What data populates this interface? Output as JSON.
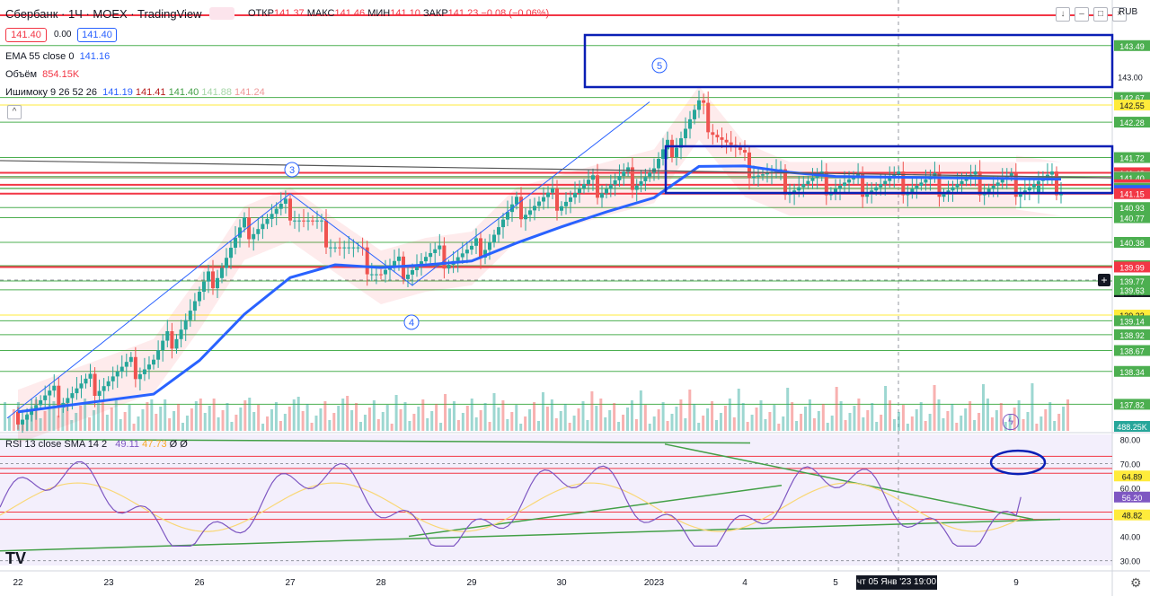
{
  "header": {
    "symbol": "Сбербанк · 1Ч · MOEX · TradingView",
    "open_label": "ОТКР",
    "open": "141.37",
    "high_label": "МАКС",
    "high": "141.46",
    "low_label": "МИН",
    "low": "141.10",
    "close_label": "ЗАКР",
    "close": "141.23",
    "change": "−0.08 (−0.06%)",
    "currency": "RUB"
  },
  "legend": {
    "bid": "141.40",
    "spread": "0.00",
    "ask": "141.40",
    "ema_label": "EMA 55 close 0",
    "ema_value": "141.16",
    "volume_label": "Объём",
    "volume_value": "854.15K",
    "ichimoku_label": "Ишимоку 9 26 52 26",
    "ichimoku_values": [
      "141.19",
      "141.41",
      "141.40",
      "141.88",
      "141.24"
    ],
    "rsi_label": "RSI 13 close SMA 14 2",
    "rsi_values": [
      "49.11",
      "47.73",
      "Ø",
      "Ø"
    ]
  },
  "cursor_label": "чт 05 Янв '23   19:00",
  "price_badges": [
    {
      "v": 143.49,
      "bg": "#4caf50"
    },
    {
      "v": 142.67,
      "bg": "#4caf50"
    },
    {
      "v": 142.55,
      "bg": "#ffeb3b"
    },
    {
      "v": 142.28,
      "bg": "#4caf50"
    },
    {
      "v": 141.72,
      "bg": "#4caf50"
    },
    {
      "v": 141.48,
      "bg": "#f23645"
    },
    {
      "v": 141.42,
      "bg": "#4caf50"
    },
    {
      "v": 141.41,
      "bg": "#f7a8ad"
    },
    {
      "v": 141.4,
      "bg": "#2a2e39"
    },
    {
      "v": 141.4,
      "bg": "#4caf50"
    },
    {
      "v": 141.29,
      "bg": "#f23645"
    },
    {
      "v": 141.24,
      "bg": "#a5d6a7"
    },
    {
      "v": 141.23,
      "bg": "#4caf50"
    },
    {
      "v": 141.2,
      "bg": "#2962ff"
    },
    {
      "v": 141.19,
      "bg": "#2962ff"
    },
    {
      "v": 141.15,
      "bg": "#f23645"
    },
    {
      "v": 140.93,
      "bg": "#4caf50"
    },
    {
      "v": 140.77,
      "bg": "#4caf50"
    },
    {
      "v": 140.38,
      "bg": "#4caf50"
    },
    {
      "v": 139.6,
      "bg": "#131722"
    },
    {
      "v": 140.01,
      "bg": "#4caf50"
    },
    {
      "v": 139.99,
      "bg": "#f23645"
    },
    {
      "v": 139.77,
      "bg": "#4caf50"
    },
    {
      "v": 139.63,
      "bg": "#4caf50"
    },
    {
      "v": 139.23,
      "bg": "#ffeb3b"
    },
    {
      "v": 139.14,
      "bg": "#4caf50"
    },
    {
      "v": 138.92,
      "bg": "#4caf50"
    },
    {
      "v": 138.67,
      "bg": "#4caf50"
    },
    {
      "v": 138.34,
      "bg": "#4caf50"
    },
    {
      "v": 137.82,
      "bg": "#4caf50"
    }
  ],
  "price_axis_ticks": [
    "143.00",
    "137.50"
  ],
  "volume_badge": "488.25K",
  "rsi_axis_ticks": [
    "80.00",
    "70.00",
    "60.00",
    "50.00",
    "40.00",
    "30.00"
  ],
  "rsi_badges": [
    {
      "v": "64.89",
      "bg": "#ffeb3b"
    },
    {
      "v": "56.20",
      "bg": "#7e57c2"
    },
    {
      "v": "48.82",
      "bg": "#ffeb3b"
    }
  ],
  "wave_labels": [
    "5",
    "3",
    "4"
  ],
  "chart_data": {
    "type": "candlestick",
    "x_ticks": [
      "22",
      "23",
      "26",
      "27",
      "28",
      "29",
      "30",
      "2023",
      "4",
      "5",
      "9"
    ],
    "price_range": [
      137.4,
      143.7
    ],
    "close_series": [
      {
        "x": "22",
        "y": 137.7
      },
      {
        "x": "23",
        "y": 138.5
      },
      {
        "x": "26",
        "y": 139.5
      },
      {
        "x": "26",
        "y": 140.6
      },
      {
        "x": "27",
        "y": 140.9
      },
      {
        "x": "27",
        "y": 140.4
      },
      {
        "x": "28",
        "y": 139.9
      },
      {
        "x": "28",
        "y": 140.1
      },
      {
        "x": "29",
        "y": 140.2
      },
      {
        "x": "29",
        "y": 140.9
      },
      {
        "x": "30",
        "y": 141.1
      },
      {
        "x": "30",
        "y": 141.3
      },
      {
        "x": "2023",
        "y": 141.5
      },
      {
        "x": "2023",
        "y": 142.5
      },
      {
        "x": "4",
        "y": 141.6
      },
      {
        "x": "4",
        "y": 141.3
      },
      {
        "x": "5",
        "y": 141.3
      },
      {
        "x": "9",
        "y": 141.3
      },
      {
        "x": "9",
        "y": 141.4
      }
    ],
    "rsi_range": [
      28,
      82
    ],
    "rsi_last": 56.2
  }
}
